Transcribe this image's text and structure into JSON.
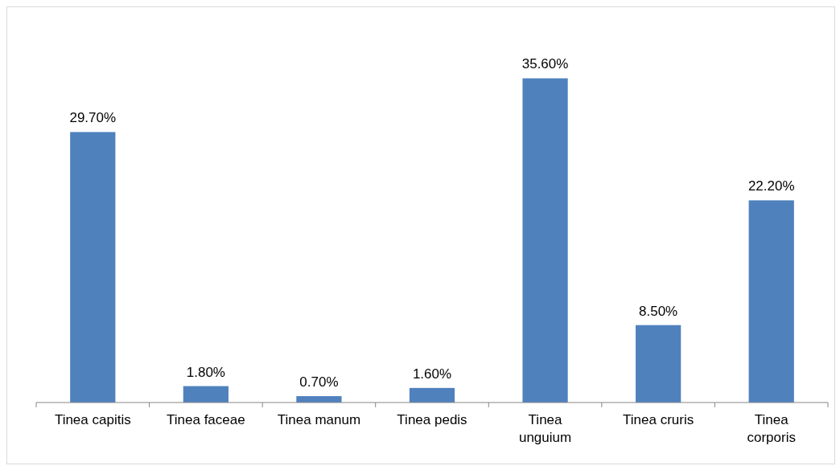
{
  "chart_data": {
    "type": "bar",
    "categories": [
      "Tinea capitis",
      "Tinea faceae",
      "Tinea manum",
      "Tinea pedis",
      "Tinea unguium",
      "Tinea cruris",
      "Tinea corporis"
    ],
    "values": [
      29.7,
      1.8,
      0.7,
      1.6,
      35.6,
      8.5,
      22.2
    ],
    "value_labels": [
      "29.70%",
      "1.80%",
      "0.70%",
      "1.60%",
      "35.60%",
      "8.50%",
      "22.20%"
    ],
    "color": "#4f81bd"
  }
}
